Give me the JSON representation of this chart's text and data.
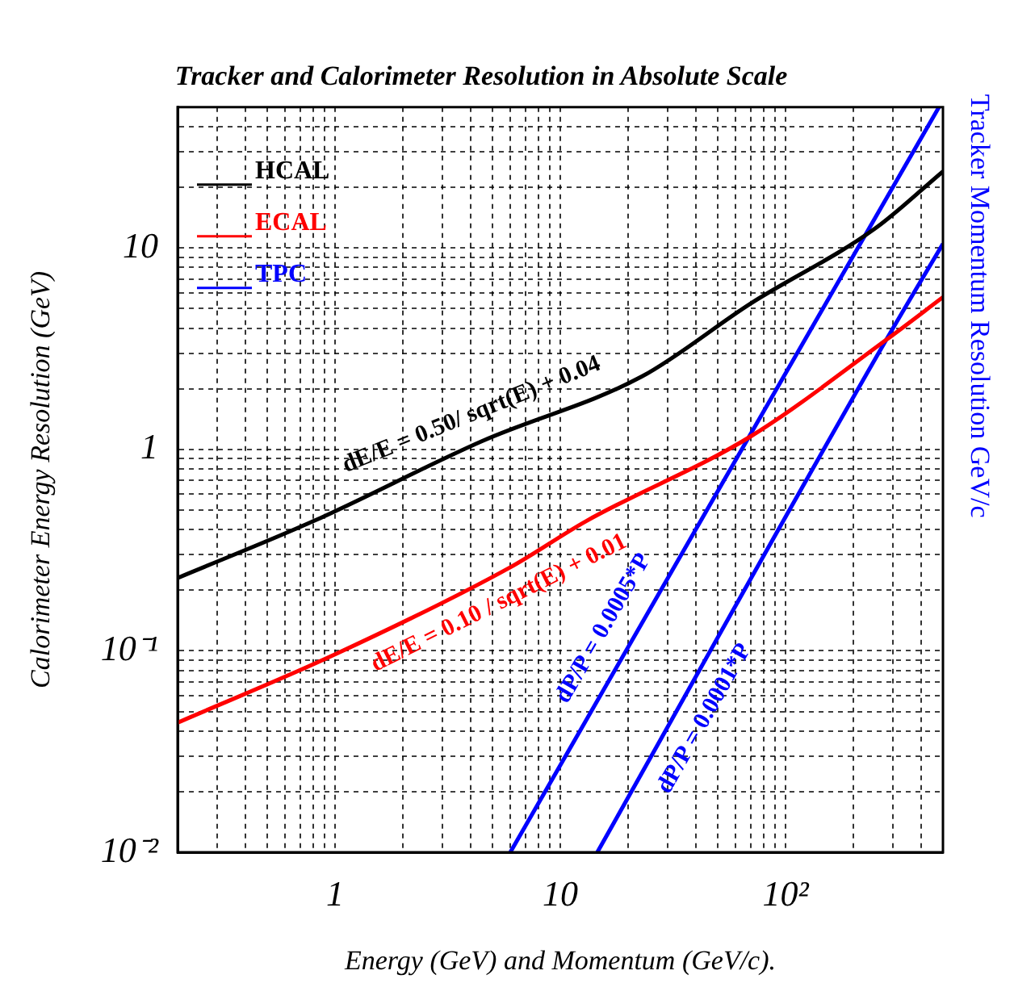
{
  "chart_data": {
    "type": "line",
    "title": "Tracker and Calorimeter Resolution in Absolute Scale",
    "xlabel": "Energy (GeV) and Momentum (GeV/c).",
    "ylabel": "Calorimeter Energy Resolution (GeV)",
    "y2label": "Tracker Momentum Resolution GeV/c",
    "log": "xy",
    "grid": true,
    "legend": "top left",
    "xlim": [
      0.2,
      500
    ],
    "ylim": [
      0.01,
      50
    ],
    "xticks": [
      {
        "value": 0.2,
        "label": null
      },
      {
        "value": 0.3,
        "label": null
      },
      {
        "value": 0.4,
        "label": null
      },
      {
        "value": 0.5,
        "label": null
      },
      {
        "value": 0.6,
        "label": null
      },
      {
        "value": 0.7,
        "label": null
      },
      {
        "value": 0.8,
        "label": null
      },
      {
        "value": 0.9,
        "label": null
      },
      1,
      {
        "value": 2,
        "label": null
      },
      {
        "value": 3,
        "label": null
      },
      {
        "value": 4,
        "label": null
      },
      {
        "value": 5,
        "label": null
      },
      {
        "value": 6,
        "label": null
      },
      {
        "value": 7,
        "label": null
      },
      {
        "value": 8,
        "label": null
      },
      {
        "value": 9,
        "label": null
      },
      10,
      {
        "value": 20,
        "label": null
      },
      {
        "value": 30,
        "label": null
      },
      {
        "value": 40,
        "label": null
      },
      {
        "value": 50,
        "label": null
      },
      {
        "value": 60,
        "label": null
      },
      {
        "value": 70,
        "label": null
      },
      {
        "value": 80,
        "label": null
      },
      {
        "value": 90,
        "label": null
      },
      {
        "value": 100,
        "label": "10²"
      },
      {
        "value": 200,
        "label": null
      },
      {
        "value": 300,
        "label": null
      },
      {
        "value": 400,
        "label": null
      }
    ],
    "yticks": [
      {
        "value": 0.01,
        "label": "10⁻²"
      },
      {
        "value": 0.02,
        "label": null
      },
      {
        "value": 0.03,
        "label": null
      },
      {
        "value": 0.04,
        "label": null
      },
      {
        "value": 0.05,
        "label": null
      },
      {
        "value": 0.06,
        "label": null
      },
      {
        "value": 0.07,
        "label": null
      },
      {
        "value": 0.08,
        "label": null
      },
      {
        "value": 0.09,
        "label": null
      },
      {
        "value": 0.1,
        "label": "10⁻¹"
      },
      {
        "value": 0.2,
        "label": null
      },
      {
        "value": 0.3,
        "label": null
      },
      {
        "value": 0.4,
        "label": null
      },
      {
        "value": 0.5,
        "label": null
      },
      {
        "value": 0.6,
        "label": null
      },
      {
        "value": 0.7,
        "label": null
      },
      {
        "value": 0.8,
        "label": null
      },
      {
        "value": 0.9,
        "label": null
      },
      1,
      {
        "value": 2,
        "label": null
      },
      {
        "value": 3,
        "label": null
      },
      {
        "value": 4,
        "label": null
      },
      {
        "value": 5,
        "label": null
      },
      {
        "value": 6,
        "label": null
      },
      {
        "value": 7,
        "label": null
      },
      {
        "value": 8,
        "label": null
      },
      {
        "value": 9,
        "label": null
      },
      10,
      {
        "value": 20,
        "label": null
      },
      {
        "value": 30,
        "label": null
      },
      {
        "value": 40,
        "label": null
      }
    ],
    "series": [
      {
        "name": "HCAL",
        "color": "#000000",
        "x": [
          0.2,
          0.8,
          4.5,
          23,
          70,
          250,
          500
        ],
        "values": [
          0.23,
          0.44,
          1.1,
          2.3,
          5.3,
          12.5,
          24
        ]
      },
      {
        "name": "ECAL",
        "color": "#ff0000",
        "x": [
          0.2,
          1,
          6,
          13,
          70,
          280,
          500
        ],
        "values": [
          0.044,
          0.096,
          0.26,
          0.44,
          1.16,
          3.5,
          5.7
        ]
      },
      {
        "name": "TPC",
        "color": "#0000ff",
        "x": [
          6,
          69,
          480
        ],
        "values": [
          0.01,
          1.16,
          50
        ]
      },
      {
        "color": "#0000ff",
        "x": [
          14.6,
          280,
          500
        ],
        "values": [
          0.01,
          3.5,
          10.5
        ]
      }
    ],
    "annotations": [
      {
        "text": "dE/E = 0.50/ sqrt(E) + 0.04",
        "x": 4.5,
        "y": 1.1
      },
      {
        "text": "dE/E = 0.10 / sqrt(E) + 0.01",
        "x": 4.7,
        "y": 0.23
      },
      {
        "text": "dP/P = 0.0005*P",
        "x": 20,
        "y": 0.11
      },
      {
        "text": "dP/P = 0.0001*P",
        "x": 34,
        "y": 0.054
      }
    ]
  }
}
